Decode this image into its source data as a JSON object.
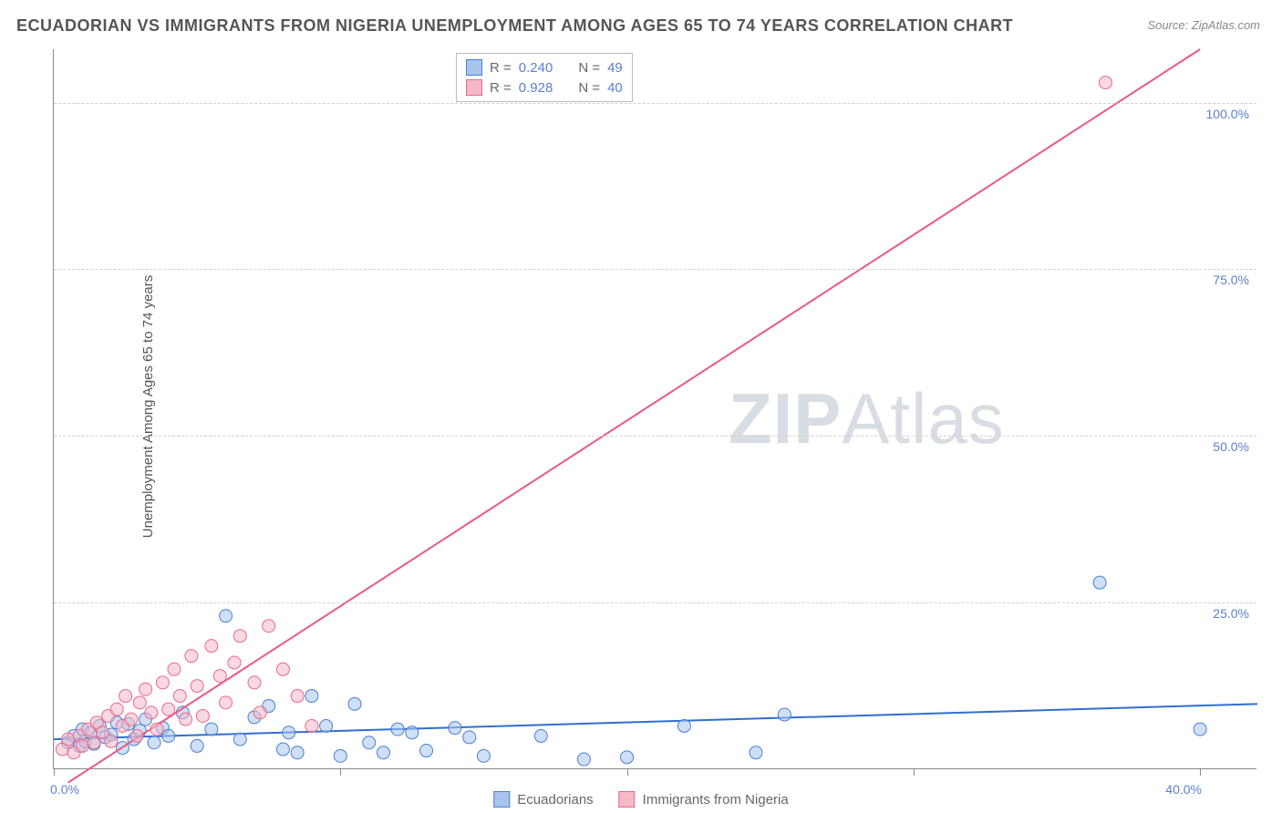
{
  "title": "ECUADORIAN VS IMMIGRANTS FROM NIGERIA UNEMPLOYMENT AMONG AGES 65 TO 74 YEARS CORRELATION CHART",
  "source": "Source: ZipAtlas.com",
  "y_axis_label": "Unemployment Among Ages 65 to 74 years",
  "watermark": {
    "bold": "ZIP",
    "rest": "Atlas"
  },
  "chart": {
    "type": "scatter",
    "background_color": "#ffffff",
    "grid_color": "#d0d0d0",
    "axis_color": "#888888",
    "tick_label_color": "#5b7fd1",
    "xlim": [
      0,
      42
    ],
    "ylim": [
      0,
      108
    ],
    "x_ticks": [
      0,
      10,
      20,
      30,
      40
    ],
    "x_tick_labels_shown": {
      "0": "0.0%",
      "40": "40.0%"
    },
    "y_ticks": [
      25,
      50,
      75,
      100
    ],
    "y_tick_labels": [
      "25.0%",
      "50.0%",
      "75.0%",
      "100.0%"
    ],
    "marker_radius": 7,
    "marker_opacity": 0.55,
    "line_width": 2,
    "series": [
      {
        "key": "ecuadorians",
        "label": "Ecuadorians",
        "fill": "#a8c4ec",
        "stroke": "#4b7fd4",
        "line_color": "#2f6fd0",
        "R": "0.240",
        "N": "49",
        "trend": {
          "x1": 0,
          "y1": 4.5,
          "x2": 42,
          "y2": 9.8
        },
        "points": [
          [
            0.5,
            4
          ],
          [
            0.7,
            5
          ],
          [
            0.9,
            3.5
          ],
          [
            1.0,
            6
          ],
          [
            1.1,
            4.2
          ],
          [
            1.3,
            5.5
          ],
          [
            1.4,
            3.8
          ],
          [
            1.6,
            6.5
          ],
          [
            1.8,
            4.8
          ],
          [
            2.0,
            5.2
          ],
          [
            2.2,
            7
          ],
          [
            2.4,
            3.2
          ],
          [
            2.6,
            6.8
          ],
          [
            2.8,
            4.5
          ],
          [
            3.0,
            5.8
          ],
          [
            3.2,
            7.5
          ],
          [
            3.5,
            4.0
          ],
          [
            3.8,
            6.2
          ],
          [
            4.0,
            5.0
          ],
          [
            4.5,
            8.5
          ],
          [
            5.0,
            3.5
          ],
          [
            5.5,
            6.0
          ],
          [
            6.0,
            23
          ],
          [
            6.5,
            4.5
          ],
          [
            7.0,
            7.8
          ],
          [
            7.5,
            9.5
          ],
          [
            8.0,
            3.0
          ],
          [
            8.2,
            5.5
          ],
          [
            8.5,
            2.5
          ],
          [
            9.0,
            11
          ],
          [
            9.5,
            6.5
          ],
          [
            10.0,
            2.0
          ],
          [
            10.5,
            9.8
          ],
          [
            11.0,
            4.0
          ],
          [
            11.5,
            2.5
          ],
          [
            12.0,
            6.0
          ],
          [
            12.5,
            5.5
          ],
          [
            13.0,
            2.8
          ],
          [
            14.0,
            6.2
          ],
          [
            14.5,
            4.8
          ],
          [
            15.0,
            2.0
          ],
          [
            17.0,
            5.0
          ],
          [
            18.5,
            1.5
          ],
          [
            20.0,
            1.8
          ],
          [
            22.0,
            6.5
          ],
          [
            24.5,
            2.5
          ],
          [
            25.5,
            8.2
          ],
          [
            36.5,
            28
          ],
          [
            40,
            6
          ]
        ]
      },
      {
        "key": "nigeria",
        "label": "Immigrants from Nigeria",
        "fill": "#f5b8c8",
        "stroke": "#e86a8a",
        "line_color": "#e85a82",
        "R": "0.928",
        "N": "40",
        "trend": {
          "x1": 0.5,
          "y1": -2,
          "x2": 40,
          "y2": 108
        },
        "points": [
          [
            0.3,
            3
          ],
          [
            0.5,
            4.5
          ],
          [
            0.7,
            2.5
          ],
          [
            0.9,
            5
          ],
          [
            1.0,
            3.5
          ],
          [
            1.2,
            6
          ],
          [
            1.4,
            4
          ],
          [
            1.5,
            7
          ],
          [
            1.7,
            5.5
          ],
          [
            1.9,
            8
          ],
          [
            2.0,
            4.2
          ],
          [
            2.2,
            9
          ],
          [
            2.4,
            6.5
          ],
          [
            2.5,
            11
          ],
          [
            2.7,
            7.5
          ],
          [
            2.9,
            5.0
          ],
          [
            3.0,
            10
          ],
          [
            3.2,
            12
          ],
          [
            3.4,
            8.5
          ],
          [
            3.6,
            6.0
          ],
          [
            3.8,
            13
          ],
          [
            4.0,
            9.0
          ],
          [
            4.2,
            15
          ],
          [
            4.4,
            11
          ],
          [
            4.6,
            7.5
          ],
          [
            4.8,
            17
          ],
          [
            5.0,
            12.5
          ],
          [
            5.2,
            8.0
          ],
          [
            5.5,
            18.5
          ],
          [
            5.8,
            14
          ],
          [
            6.0,
            10
          ],
          [
            6.3,
            16
          ],
          [
            6.5,
            20
          ],
          [
            7.0,
            13
          ],
          [
            7.2,
            8.5
          ],
          [
            7.5,
            21.5
          ],
          [
            8.0,
            15
          ],
          [
            8.5,
            11
          ],
          [
            9.0,
            6.5
          ],
          [
            36.7,
            103
          ]
        ]
      }
    ]
  },
  "legend_top": {
    "rows": [
      {
        "swatch_fill": "#a8c4ec",
        "swatch_stroke": "#4b7fd4",
        "r_label": "R =",
        "r_val": "0.240",
        "n_label": "N =",
        "n_val": "49"
      },
      {
        "swatch_fill": "#f5b8c8",
        "swatch_stroke": "#e86a8a",
        "r_label": "R =",
        "r_val": "0.928",
        "n_label": "N =",
        "n_val": "40"
      }
    ]
  },
  "legend_bottom": [
    {
      "swatch_fill": "#a8c4ec",
      "swatch_stroke": "#4b7fd4",
      "label": "Ecuadorians"
    },
    {
      "swatch_fill": "#f5b8c8",
      "swatch_stroke": "#e86a8a",
      "label": "Immigrants from Nigeria"
    }
  ]
}
